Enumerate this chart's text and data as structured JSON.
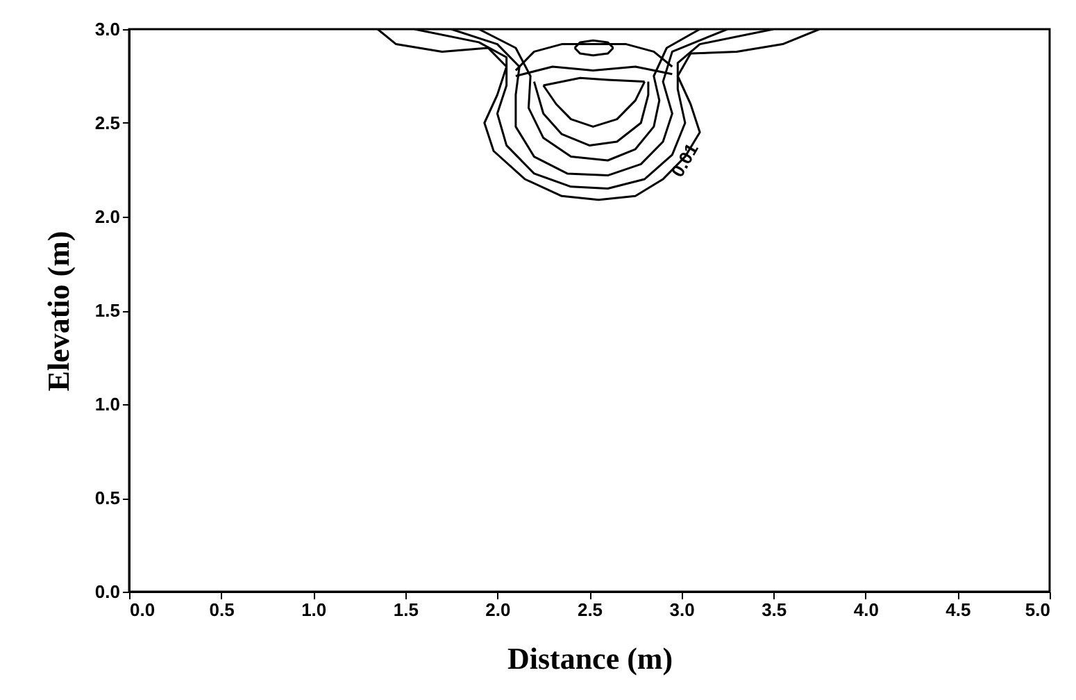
{
  "chart_data": {
    "type": "line",
    "xlabel": "Distance (m)",
    "ylabel": "Elevatio (m)",
    "xlim": [
      0,
      5
    ],
    "ylim": [
      0,
      3
    ],
    "xticks": [
      {
        "value": 0,
        "label": "0.0"
      },
      {
        "value": 0.5,
        "label": "0.5"
      },
      {
        "value": 1,
        "label": "1.0"
      },
      {
        "value": 1.5,
        "label": "1.5"
      },
      {
        "value": 2,
        "label": "2.0"
      },
      {
        "value": 2.5,
        "label": "2.5"
      },
      {
        "value": 3,
        "label": "3.0"
      },
      {
        "value": 3.5,
        "label": "3.5"
      },
      {
        "value": 4,
        "label": "4.0"
      },
      {
        "value": 4.5,
        "label": "4.5"
      },
      {
        "value": 5,
        "label": "5.0"
      }
    ],
    "yticks": [
      {
        "value": 0,
        "label": "0.0"
      },
      {
        "value": 0.5,
        "label": "0.5"
      },
      {
        "value": 1,
        "label": "1.0"
      },
      {
        "value": 1.5,
        "label": "1.5"
      },
      {
        "value": 2,
        "label": "2.0"
      },
      {
        "value": 2.5,
        "label": "2.5"
      },
      {
        "value": 3,
        "label": "3.0"
      }
    ],
    "annotations": [
      {
        "text": "0.01",
        "x": 3.02,
        "y": 2.3
      }
    ],
    "series": [
      {
        "color": "#000000",
        "x": [
          1.35,
          1.45,
          1.7,
          1.95,
          2.05,
          2.0,
          1.93,
          1.98,
          2.15,
          2.35,
          2.55,
          2.75,
          2.9,
          3.02,
          3.1,
          3.05,
          2.98,
          3.05,
          3.3,
          3.55,
          3.75
        ],
        "values": [
          3.0,
          2.92,
          2.88,
          2.9,
          2.8,
          2.65,
          2.5,
          2.35,
          2.2,
          2.11,
          2.09,
          2.11,
          2.2,
          2.32,
          2.45,
          2.6,
          2.75,
          2.87,
          2.88,
          2.92,
          3.0
        ]
      },
      {
        "color": "#000000",
        "x": [
          1.55,
          1.9,
          2.05,
          2.05,
          2.0,
          2.05,
          2.2,
          2.4,
          2.6,
          2.8,
          2.95,
          3.02,
          2.98,
          2.98,
          3.1,
          3.5
        ],
        "values": [
          3.0,
          2.93,
          2.85,
          2.7,
          2.55,
          2.38,
          2.23,
          2.16,
          2.15,
          2.2,
          2.33,
          2.5,
          2.68,
          2.82,
          2.92,
          3.0
        ]
      },
      {
        "color": "#000000",
        "x": [
          1.75,
          2.0,
          2.12,
          2.1,
          2.1,
          2.2,
          2.38,
          2.6,
          2.78,
          2.9,
          2.95,
          2.9,
          2.95,
          3.25
        ],
        "values": [
          3.0,
          2.92,
          2.8,
          2.65,
          2.48,
          2.32,
          2.23,
          2.22,
          2.28,
          2.4,
          2.55,
          2.72,
          2.88,
          3.0
        ]
      },
      {
        "color": "#000000",
        "x": [
          1.9,
          2.1,
          2.18,
          2.17,
          2.25,
          2.4,
          2.6,
          2.75,
          2.85,
          2.88,
          2.85,
          2.92,
          3.1
        ],
        "values": [
          3.0,
          2.9,
          2.75,
          2.58,
          2.42,
          2.32,
          2.3,
          2.36,
          2.48,
          2.62,
          2.75,
          2.9,
          3.0
        ]
      },
      {
        "color": "#000000",
        "x": [
          2.2,
          2.25,
          2.35,
          2.5,
          2.65,
          2.78,
          2.82,
          2.82
        ],
        "values": [
          2.72,
          2.55,
          2.44,
          2.38,
          2.4,
          2.5,
          2.65,
          2.72
        ]
      },
      {
        "color": "#000000",
        "x": [
          2.25,
          2.32,
          2.4,
          2.52,
          2.65,
          2.75,
          2.8
        ],
        "values": [
          2.7,
          2.6,
          2.52,
          2.48,
          2.52,
          2.62,
          2.72
        ]
      },
      {
        "color": "#000000",
        "x": [
          2.25,
          2.45,
          2.6,
          2.8
        ],
        "values": [
          2.7,
          2.74,
          2.73,
          2.72
        ]
      },
      {
        "color": "#000000",
        "x": [
          2.1,
          2.3,
          2.52,
          2.75,
          2.95
        ],
        "values": [
          2.75,
          2.8,
          2.78,
          2.8,
          2.76
        ]
      },
      {
        "color": "#000000",
        "x": [
          2.1,
          2.2,
          2.35,
          2.52,
          2.7,
          2.85,
          2.95
        ],
        "values": [
          2.78,
          2.88,
          2.92,
          2.92,
          2.92,
          2.88,
          2.8
        ]
      },
      {
        "color": "#000000",
        "x": [
          2.42,
          2.45,
          2.52,
          2.6,
          2.63
        ],
        "values": [
          2.9,
          2.87,
          2.86,
          2.87,
          2.9
        ]
      },
      {
        "color": "#000000",
        "x": [
          2.42,
          2.45,
          2.52,
          2.6,
          2.63
        ],
        "values": [
          2.9,
          2.93,
          2.94,
          2.93,
          2.9
        ]
      }
    ]
  }
}
